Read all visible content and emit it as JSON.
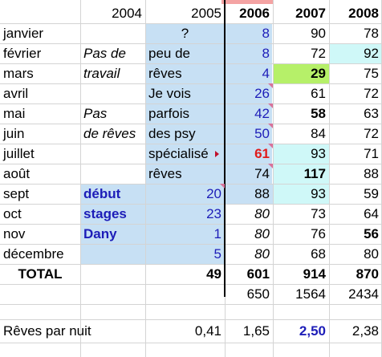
{
  "header": {
    "y2004": "2004",
    "y2005": "2005",
    "y2006": "2006",
    "y2007": "2007",
    "y2008": "2008"
  },
  "rows": [
    {
      "month": "janvier",
      "note": "",
      "comment": "",
      "v2005": "?",
      "v2006": "8",
      "v2007": "90",
      "v2008": "78"
    },
    {
      "month": "février",
      "note": "Pas de",
      "comment": "peu de",
      "v2005": "",
      "v2006": "8",
      "v2007": "72",
      "v2008": "92"
    },
    {
      "month": "mars",
      "note": "travail",
      "comment": "rêves",
      "v2005": "",
      "v2006": "4",
      "v2007": "29",
      "v2008": "75"
    },
    {
      "month": "avril",
      "note": "",
      "comment": "Je vois",
      "v2005": "",
      "v2006": "26",
      "v2007": "61",
      "v2008": "72"
    },
    {
      "month": "mai",
      "note": "Pas",
      "comment": "parfois",
      "v2005": "",
      "v2006": "42",
      "v2007": "58",
      "v2008": "63"
    },
    {
      "month": "juin",
      "note": "de rêves",
      "comment": "des psy",
      "v2005": "",
      "v2006": "50",
      "v2007": "84",
      "v2008": "72"
    },
    {
      "month": "juillet",
      "note": "",
      "comment": "spécialisé",
      "v2005": "",
      "v2006": "61",
      "v2007": "93",
      "v2008": "71"
    },
    {
      "month": "août",
      "note": "",
      "comment": "rêves",
      "v2005": "",
      "v2006": "74",
      "v2007": "117",
      "v2008": "88"
    },
    {
      "month": "sept",
      "note": "début",
      "comment": "",
      "v2005": "20",
      "v2006": "88",
      "v2007": "93",
      "v2008": "59"
    },
    {
      "month": "oct",
      "note": "stages",
      "comment": "",
      "v2005": "23",
      "v2006": "80",
      "v2007": "73",
      "v2008": "64"
    },
    {
      "month": "nov",
      "note": "Dany",
      "comment": "",
      "v2005": "1",
      "v2006": "80",
      "v2007": "76",
      "v2008": "56"
    },
    {
      "month": "décembre",
      "note": "",
      "comment": "",
      "v2005": "5",
      "v2006": "80",
      "v2007": "68",
      "v2008": "80"
    }
  ],
  "total": {
    "label": "TOTAL",
    "v2005": "49",
    "v2006": "601",
    "v2007": "914",
    "v2008": "870"
  },
  "cumul": {
    "v2006": "650",
    "v2007": "1564",
    "v2008": "2434"
  },
  "per_night": {
    "label": "Rêves par nuit",
    "v2005": "0,41",
    "v2006": "1,65",
    "v2007": "2,50",
    "v2008": "2,38"
  },
  "colors": {
    "blue_fill": "#c7e0f4",
    "cyan_fill": "#cff8f8",
    "green_fill": "#b6f069",
    "red_text": "#e01b1b",
    "blue_text": "#1d1db8"
  }
}
